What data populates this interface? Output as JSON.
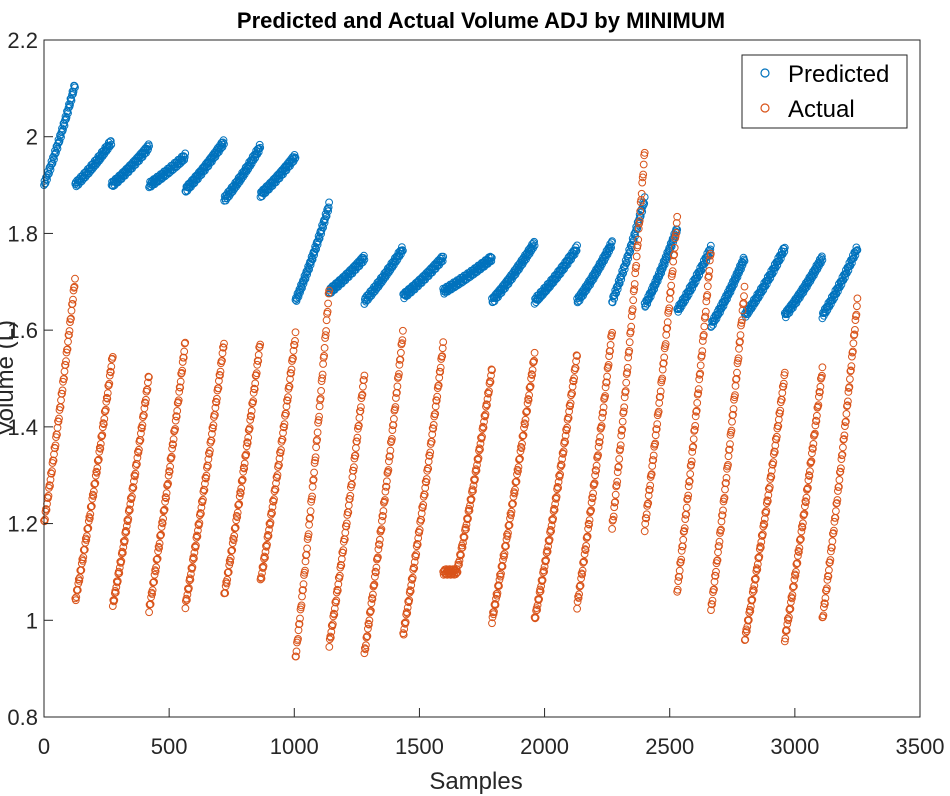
{
  "chart_data": {
    "type": "scatter",
    "title": "Predicted and Actual Volume ADJ by MINIMUM",
    "xlabel": "Samples",
    "ylabel": "Volume (L)",
    "xlim": [
      0,
      3500
    ],
    "ylim": [
      0.8,
      2.2
    ],
    "xticks": [
      0,
      500,
      1000,
      1500,
      2000,
      2500,
      3000,
      3500
    ],
    "yticks": [
      0.8,
      1,
      1.2,
      1.4,
      1.6,
      1.8,
      2,
      2.2
    ],
    "xtick_labels": [
      "0",
      "500",
      "1000",
      "1500",
      "2000",
      "2500",
      "3000",
      "3500"
    ],
    "ytick_labels": [
      "0.8",
      "1",
      "1.2",
      "1.4",
      "1.6",
      "1.8",
      "2",
      "2.2"
    ],
    "grid": false,
    "legend": "top-right",
    "marker": "open-circle",
    "series": [
      {
        "name": "Predicted",
        "color": "#0072BD",
        "segments": [
          {
            "x0": 0,
            "x1": 125,
            "y0": 1.9,
            "y1": 2.11
          },
          {
            "x0": 125,
            "x1": 270,
            "y0": 1.9,
            "y1": 1.99
          },
          {
            "x0": 270,
            "x1": 420,
            "y0": 1.9,
            "y1": 1.98
          },
          {
            "x0": 420,
            "x1": 565,
            "y0": 1.9,
            "y1": 1.96
          },
          {
            "x0": 565,
            "x1": 720,
            "y0": 1.89,
            "y1": 1.99
          },
          {
            "x0": 720,
            "x1": 865,
            "y0": 1.87,
            "y1": 1.98
          },
          {
            "x0": 865,
            "x1": 1005,
            "y0": 1.88,
            "y1": 1.96
          },
          {
            "x0": 1005,
            "x1": 1140,
            "y0": 1.66,
            "y1": 1.86
          },
          {
            "x0": 1140,
            "x1": 1280,
            "y0": 1.68,
            "y1": 1.75
          },
          {
            "x0": 1280,
            "x1": 1435,
            "y0": 1.66,
            "y1": 1.77
          },
          {
            "x0": 1435,
            "x1": 1595,
            "y0": 1.67,
            "y1": 1.75
          },
          {
            "x0": 1595,
            "x1": 1790,
            "y0": 1.68,
            "y1": 1.75
          },
          {
            "x0": 1790,
            "x1": 1960,
            "y0": 1.66,
            "y1": 1.78
          },
          {
            "x0": 1960,
            "x1": 2130,
            "y0": 1.66,
            "y1": 1.77
          },
          {
            "x0": 2130,
            "x1": 2270,
            "y0": 1.66,
            "y1": 1.78
          },
          {
            "x0": 2270,
            "x1": 2400,
            "y0": 1.66,
            "y1": 1.87
          },
          {
            "x0": 2400,
            "x1": 2530,
            "y0": 1.65,
            "y1": 1.81
          },
          {
            "x0": 2530,
            "x1": 2665,
            "y0": 1.64,
            "y1": 1.77
          },
          {
            "x0": 2665,
            "x1": 2800,
            "y0": 1.61,
            "y1": 1.75
          },
          {
            "x0": 2800,
            "x1": 2960,
            "y0": 1.63,
            "y1": 1.77
          },
          {
            "x0": 2960,
            "x1": 3110,
            "y0": 1.63,
            "y1": 1.75
          },
          {
            "x0": 3110,
            "x1": 3250,
            "y0": 1.63,
            "y1": 1.77
          }
        ]
      },
      {
        "name": "Actual",
        "color": "#D95319",
        "segments": [
          {
            "x0": 0,
            "x1": 125,
            "y0": 1.2,
            "y1": 1.71
          },
          {
            "x0": 125,
            "x1": 275,
            "y0": 1.04,
            "y1": 1.55
          },
          {
            "x0": 275,
            "x1": 420,
            "y0": 1.03,
            "y1": 1.51
          },
          {
            "x0": 420,
            "x1": 565,
            "y0": 1.02,
            "y1": 1.58
          },
          {
            "x0": 565,
            "x1": 720,
            "y0": 1.03,
            "y1": 1.58
          },
          {
            "x0": 720,
            "x1": 865,
            "y0": 1.05,
            "y1": 1.58
          },
          {
            "x0": 865,
            "x1": 1005,
            "y0": 1.08,
            "y1": 1.59
          },
          {
            "x0": 1005,
            "x1": 1140,
            "y0": 0.92,
            "y1": 1.69
          },
          {
            "x0": 1140,
            "x1": 1280,
            "y0": 0.95,
            "y1": 1.51
          },
          {
            "x0": 1280,
            "x1": 1435,
            "y0": 0.93,
            "y1": 1.6
          },
          {
            "x0": 1435,
            "x1": 1595,
            "y0": 0.97,
            "y1": 1.57
          },
          {
            "x0": 1595,
            "x1": 1650,
            "y0": 1.1,
            "y1": 1.1,
            "shape": "flat"
          },
          {
            "x0": 1650,
            "x1": 1790,
            "y0": 1.1,
            "y1": 1.52
          },
          {
            "x0": 1790,
            "x1": 1960,
            "y0": 1.0,
            "y1": 1.55
          },
          {
            "x0": 1960,
            "x1": 2130,
            "y0": 1.0,
            "y1": 1.55
          },
          {
            "x0": 2130,
            "x1": 2270,
            "y0": 1.03,
            "y1": 1.6
          },
          {
            "x0": 2270,
            "x1": 2400,
            "y0": 1.19,
            "y1": 1.97
          },
          {
            "x0": 2400,
            "x1": 2530,
            "y0": 1.19,
            "y1": 1.83
          },
          {
            "x0": 2530,
            "x1": 2665,
            "y0": 1.06,
            "y1": 1.77
          },
          {
            "x0": 2665,
            "x1": 2800,
            "y0": 1.02,
            "y1": 1.69
          },
          {
            "x0": 2800,
            "x1": 2960,
            "y0": 0.96,
            "y1": 1.51
          },
          {
            "x0": 2960,
            "x1": 3110,
            "y0": 0.96,
            "y1": 1.52
          },
          {
            "x0": 3110,
            "x1": 3250,
            "y0": 1.0,
            "y1": 1.66
          }
        ]
      }
    ]
  }
}
